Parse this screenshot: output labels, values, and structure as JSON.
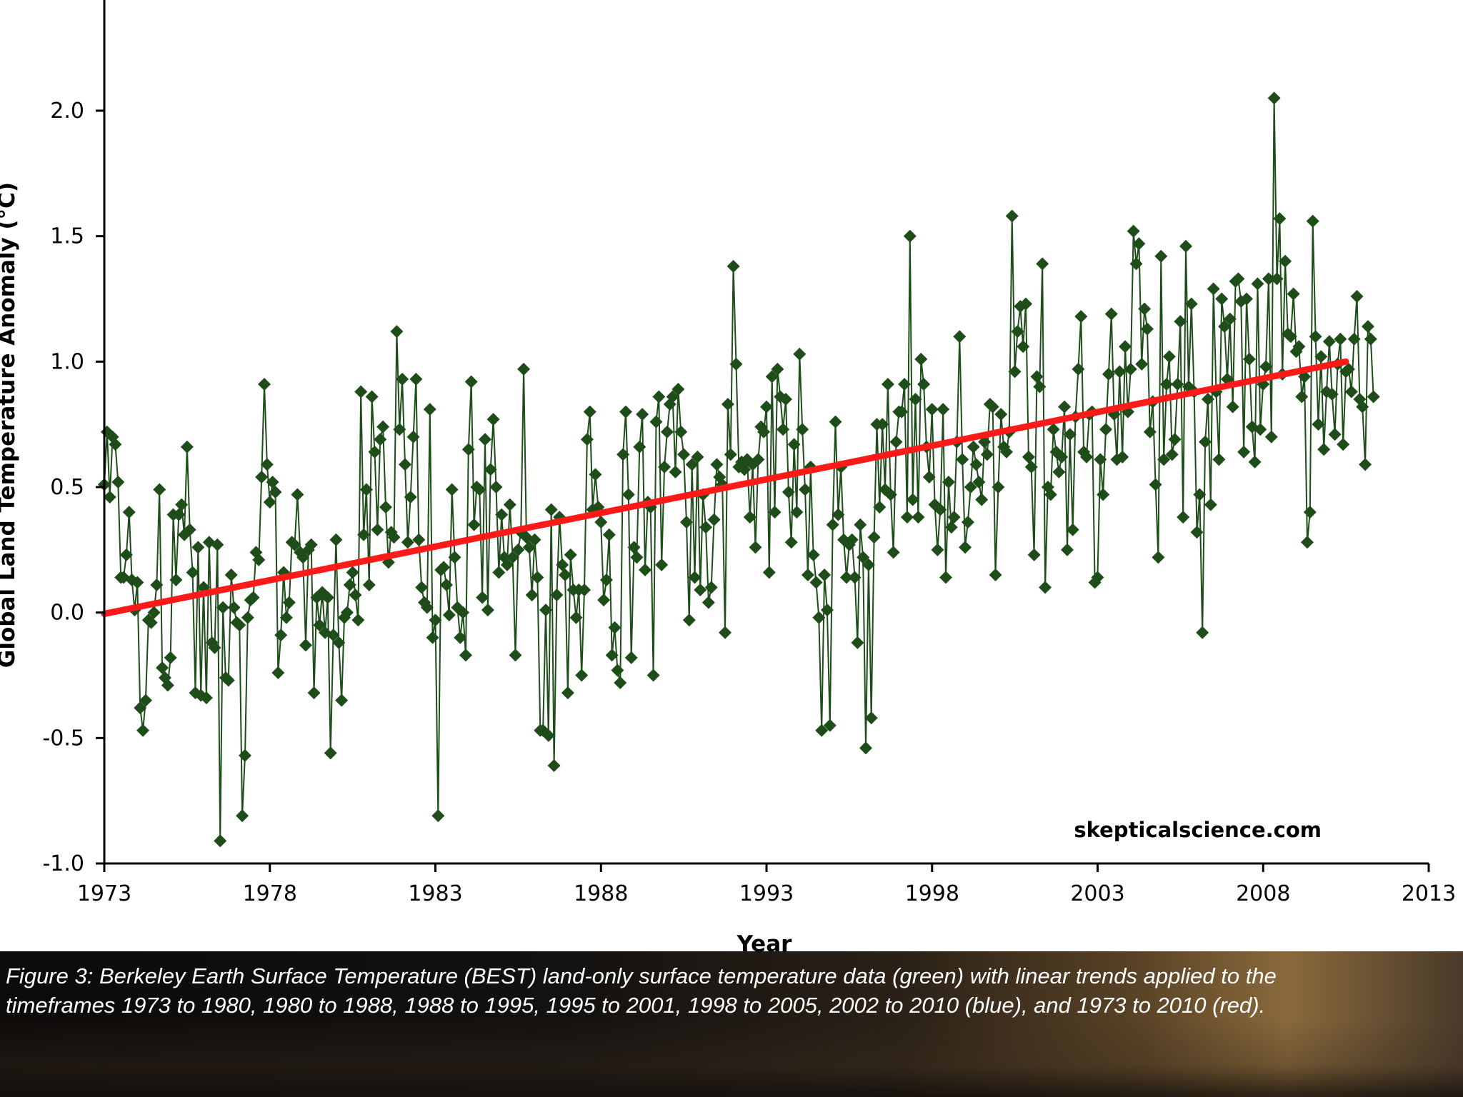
{
  "chart_data": {
    "type": "line",
    "xlabel": "Year",
    "ylabel": "Global Land Temperature Anomaly (°C)",
    "xlim": [
      1973,
      2013
    ],
    "ylim": [
      -1.0,
      2.0
    ],
    "x_ticks": [
      "1973",
      "1978",
      "1983",
      "1988",
      "1993",
      "1998",
      "2003",
      "2008",
      "2013"
    ],
    "y_ticks": [
      "-1.0",
      "-0.5",
      "0.0",
      "0.5",
      "1.0",
      "1.5",
      "2.0"
    ],
    "watermark": "skepticalscience.com",
    "series": [
      {
        "color": "#1e4d1a",
        "marker": "diamond",
        "x_start": 1973.0,
        "x_step": 0.08333,
        "values": [
          0.51,
          0.72,
          0.46,
          0.7,
          0.67,
          0.52,
          0.14,
          0.14,
          0.23,
          0.4,
          0.13,
          0.01,
          0.12,
          -0.38,
          -0.47,
          -0.35,
          -0.03,
          -0.04,
          0.0,
          0.11,
          0.49,
          -0.22,
          -0.26,
          -0.29,
          -0.18,
          0.39,
          0.13,
          0.39,
          0.43,
          0.31,
          0.66,
          0.33,
          0.16,
          -0.32,
          0.26,
          -0.33,
          0.1,
          -0.34,
          0.28,
          -0.12,
          -0.14,
          0.27,
          -0.91,
          0.02,
          -0.26,
          -0.27,
          0.15,
          0.02,
          -0.04,
          -0.05,
          -0.81,
          -0.57,
          -0.02,
          0.05,
          0.06,
          0.24,
          0.21,
          0.54,
          0.91,
          0.59,
          0.44,
          0.52,
          0.48,
          -0.24,
          -0.09,
          0.16,
          -0.02,
          0.04,
          0.28,
          0.27,
          0.47,
          0.24,
          0.22,
          -0.13,
          0.25,
          0.27,
          -0.32,
          0.06,
          -0.05,
          0.08,
          -0.08,
          0.06,
          -0.56,
          -0.09,
          0.29,
          -0.12,
          -0.35,
          -0.02,
          0.0,
          0.11,
          0.16,
          0.07,
          -0.03,
          0.88,
          0.31,
          0.49,
          0.11,
          0.86,
          0.64,
          0.33,
          0.69,
          0.74,
          0.42,
          0.2,
          0.32,
          0.3,
          1.12,
          0.73,
          0.93,
          0.59,
          0.28,
          0.46,
          0.7,
          0.93,
          0.29,
          0.1,
          0.04,
          0.02,
          0.81,
          -0.1,
          -0.03,
          -0.81,
          0.17,
          0.18,
          0.11,
          -0.01,
          0.49,
          0.22,
          0.02,
          -0.1,
          0.0,
          -0.17,
          0.65,
          0.92,
          0.35,
          0.5,
          0.49,
          0.06,
          0.69,
          0.01,
          0.57,
          0.77,
          0.5,
          0.16,
          0.39,
          0.22,
          0.19,
          0.43,
          0.22,
          -0.17,
          0.25,
          0.32,
          0.97,
          0.3,
          0.26,
          0.07,
          0.29,
          0.14,
          -0.47,
          -0.47,
          0.01,
          -0.49,
          0.41,
          -0.61,
          0.07,
          0.38,
          0.19,
          0.15,
          -0.32,
          0.23,
          0.09,
          -0.02,
          0.09,
          -0.25,
          0.09,
          0.69,
          0.8,
          0.41,
          0.55,
          0.42,
          0.36,
          0.05,
          0.13,
          0.31,
          -0.17,
          -0.06,
          -0.23,
          -0.28,
          0.63,
          0.8,
          0.47,
          -0.18,
          0.26,
          0.22,
          0.66,
          0.79,
          0.17,
          0.44,
          0.42,
          -0.25,
          0.76,
          0.86,
          0.19,
          0.58,
          0.72,
          0.83,
          0.86,
          0.56,
          0.89,
          0.72,
          0.63,
          0.36,
          -0.03,
          0.59,
          0.14,
          0.62,
          0.09,
          0.47,
          0.34,
          0.04,
          0.1,
          0.37,
          0.59,
          0.54,
          0.51,
          -0.08,
          0.83,
          0.63,
          1.38,
          0.99,
          0.58,
          0.6,
          0.57,
          0.61,
          0.38,
          0.59,
          0.26,
          0.61,
          0.74,
          0.72,
          0.82,
          0.16,
          0.94,
          0.4,
          0.97,
          0.86,
          0.73,
          0.85,
          0.48,
          0.28,
          0.67,
          0.4,
          1.03,
          0.73,
          0.49,
          0.15,
          0.58,
          0.23,
          0.12,
          -0.02,
          -0.47,
          0.15,
          0.01,
          -0.45,
          0.35,
          0.76,
          0.39,
          0.58,
          0.29,
          0.14,
          0.27,
          0.29,
          0.14,
          -0.12,
          0.35,
          0.22,
          -0.54,
          0.19,
          -0.42,
          0.3,
          0.75,
          0.42,
          0.75,
          0.49,
          0.91,
          0.47,
          0.24,
          0.68,
          0.8,
          0.8,
          0.91,
          0.38,
          1.5,
          0.45,
          0.85,
          0.38,
          1.01,
          0.91,
          0.66,
          0.54,
          0.81,
          0.43,
          0.25,
          0.41,
          0.81,
          0.14,
          0.52,
          0.34,
          0.38,
          0.68,
          1.1,
          0.61,
          0.26,
          0.36,
          0.5,
          0.66,
          0.59,
          0.52,
          0.45,
          0.68,
          0.63,
          0.83,
          0.82,
          0.15,
          0.5,
          0.79,
          0.66,
          0.64,
          0.72,
          1.58,
          0.96,
          1.12,
          1.22,
          1.06,
          1.23,
          0.62,
          0.58,
          0.23,
          0.94,
          0.9,
          1.39,
          0.1,
          0.5,
          0.47,
          0.73,
          0.64,
          0.56,
          0.62,
          0.82,
          0.25,
          0.71,
          0.33,
          0.78,
          0.97,
          1.18,
          0.64,
          0.62,
          0.79,
          0.8,
          0.12,
          0.14,
          0.61,
          0.47,
          0.73,
          0.95,
          1.19,
          0.79,
          0.61,
          0.96,
          0.62,
          1.06,
          0.8,
          0.97,
          1.52,
          1.39,
          1.47,
          0.99,
          1.21,
          1.13,
          0.72,
          0.84,
          0.51,
          0.22,
          1.42,
          0.61,
          0.91,
          1.02,
          0.63,
          0.69,
          0.91,
          1.16,
          0.38,
          1.46,
          0.9,
          1.23,
          0.88,
          0.32,
          0.47,
          -0.08,
          0.68,
          0.85,
          0.43,
          1.29,
          0.88,
          0.61,
          1.25,
          1.14,
          0.93,
          1.17,
          0.82,
          1.32,
          1.33,
          1.24,
          0.64,
          1.25,
          1.01,
          0.74,
          0.6,
          1.31,
          0.73,
          0.91,
          0.98,
          1.33,
          0.7,
          2.05,
          1.33,
          1.57,
          0.95,
          1.4,
          1.11,
          1.1,
          1.27,
          1.04,
          1.06,
          0.86,
          0.94,
          0.28,
          0.4,
          1.56,
          1.1,
          0.75,
          1.02,
          0.65,
          0.88,
          1.08,
          0.87,
          0.71,
          0.99,
          1.09,
          0.67,
          0.96,
          0.97,
          0.88,
          1.09,
          1.26,
          0.85,
          0.82,
          0.59,
          1.14,
          1.09,
          0.86
        ]
      },
      {
        "color": "#ff1a1a",
        "x": [
          1973.0,
          2010.5
        ],
        "values": [
          -0.005,
          1.0
        ]
      }
    ]
  },
  "caption": "Figure 3: Berkeley Earth Surface Temperature (BEST) land-only surface temperature data (green) with linear trends applied to the\ntimeframes 1973 to 1980, 1980 to 1988, 1988 to 1995, 1995 to 2001, 1998 to 2005, 2002 to 2010 (blue), and 1973 to 2010 (red)."
}
